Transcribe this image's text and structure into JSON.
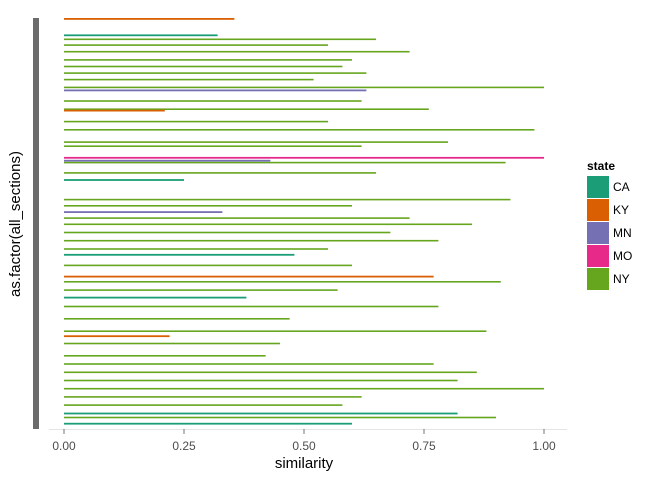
{
  "chart_data": {
    "type": "bar",
    "orientation": "horizontal",
    "title": "",
    "xlabel": "similarity",
    "ylabel": "as.factor(all_sections)",
    "xlim": [
      0,
      1
    ],
    "xticks": [
      0,
      0.25,
      0.5,
      0.75,
      1
    ],
    "xtick_labels": [
      "0.00",
      "0.25",
      "0.50",
      "0.75",
      "1.00"
    ],
    "y_categories_labeled": false,
    "grid": false,
    "legend": {
      "title": "state",
      "placement": "right",
      "entries": [
        {
          "label": "CA",
          "color": "#1b9e77"
        },
        {
          "label": "KY",
          "color": "#d95f02"
        },
        {
          "label": "MN",
          "color": "#7570b3"
        },
        {
          "label": "MO",
          "color": "#e7298a"
        },
        {
          "label": "NY",
          "color": "#66a61e"
        }
      ]
    },
    "series": [
      {
        "name": "KY",
        "section_positions": [
          0.0,
          0.223,
          0.627,
          0.772
        ],
        "values": [
          0.355,
          0.21,
          0.77,
          0.22
        ]
      },
      {
        "name": "MN",
        "section_positions": [
          0.174,
          0.345,
          0.47
        ],
        "values": [
          0.63,
          0.43,
          0.33
        ]
      },
      {
        "name": "MO",
        "section_positions": [
          0.338
        ],
        "values": [
          1.0
        ]
      },
      {
        "name": "CA",
        "section_positions": [
          0.04,
          0.392,
          0.574,
          0.678,
          0.96,
          0.985
        ],
        "values": [
          0.32,
          0.25,
          0.48,
          0.38,
          0.82,
          0.6
        ]
      },
      {
        "name": "NY",
        "section_positions": [
          0.05,
          0.064,
          0.08,
          0.1,
          0.116,
          0.132,
          0.148,
          0.167,
          0.2,
          0.22,
          0.25,
          0.27,
          0.3,
          0.31,
          0.35,
          0.375,
          0.44,
          0.455,
          0.485,
          0.5,
          0.52,
          0.54,
          0.56,
          0.6,
          0.64,
          0.66,
          0.7,
          0.73,
          0.76,
          0.79,
          0.82,
          0.84,
          0.86,
          0.88,
          0.9,
          0.92,
          0.94,
          0.97
        ],
        "values": [
          0.65,
          0.55,
          0.72,
          0.6,
          0.58,
          0.63,
          0.52,
          1.0,
          0.62,
          0.76,
          0.55,
          0.98,
          0.8,
          0.62,
          0.92,
          0.65,
          0.93,
          0.6,
          0.72,
          0.85,
          0.68,
          0.78,
          0.55,
          0.6,
          0.91,
          0.57,
          0.78,
          0.47,
          0.88,
          0.45,
          0.42,
          0.77,
          0.86,
          0.82,
          1.0,
          0.62,
          0.58,
          0.9
        ]
      }
    ]
  }
}
